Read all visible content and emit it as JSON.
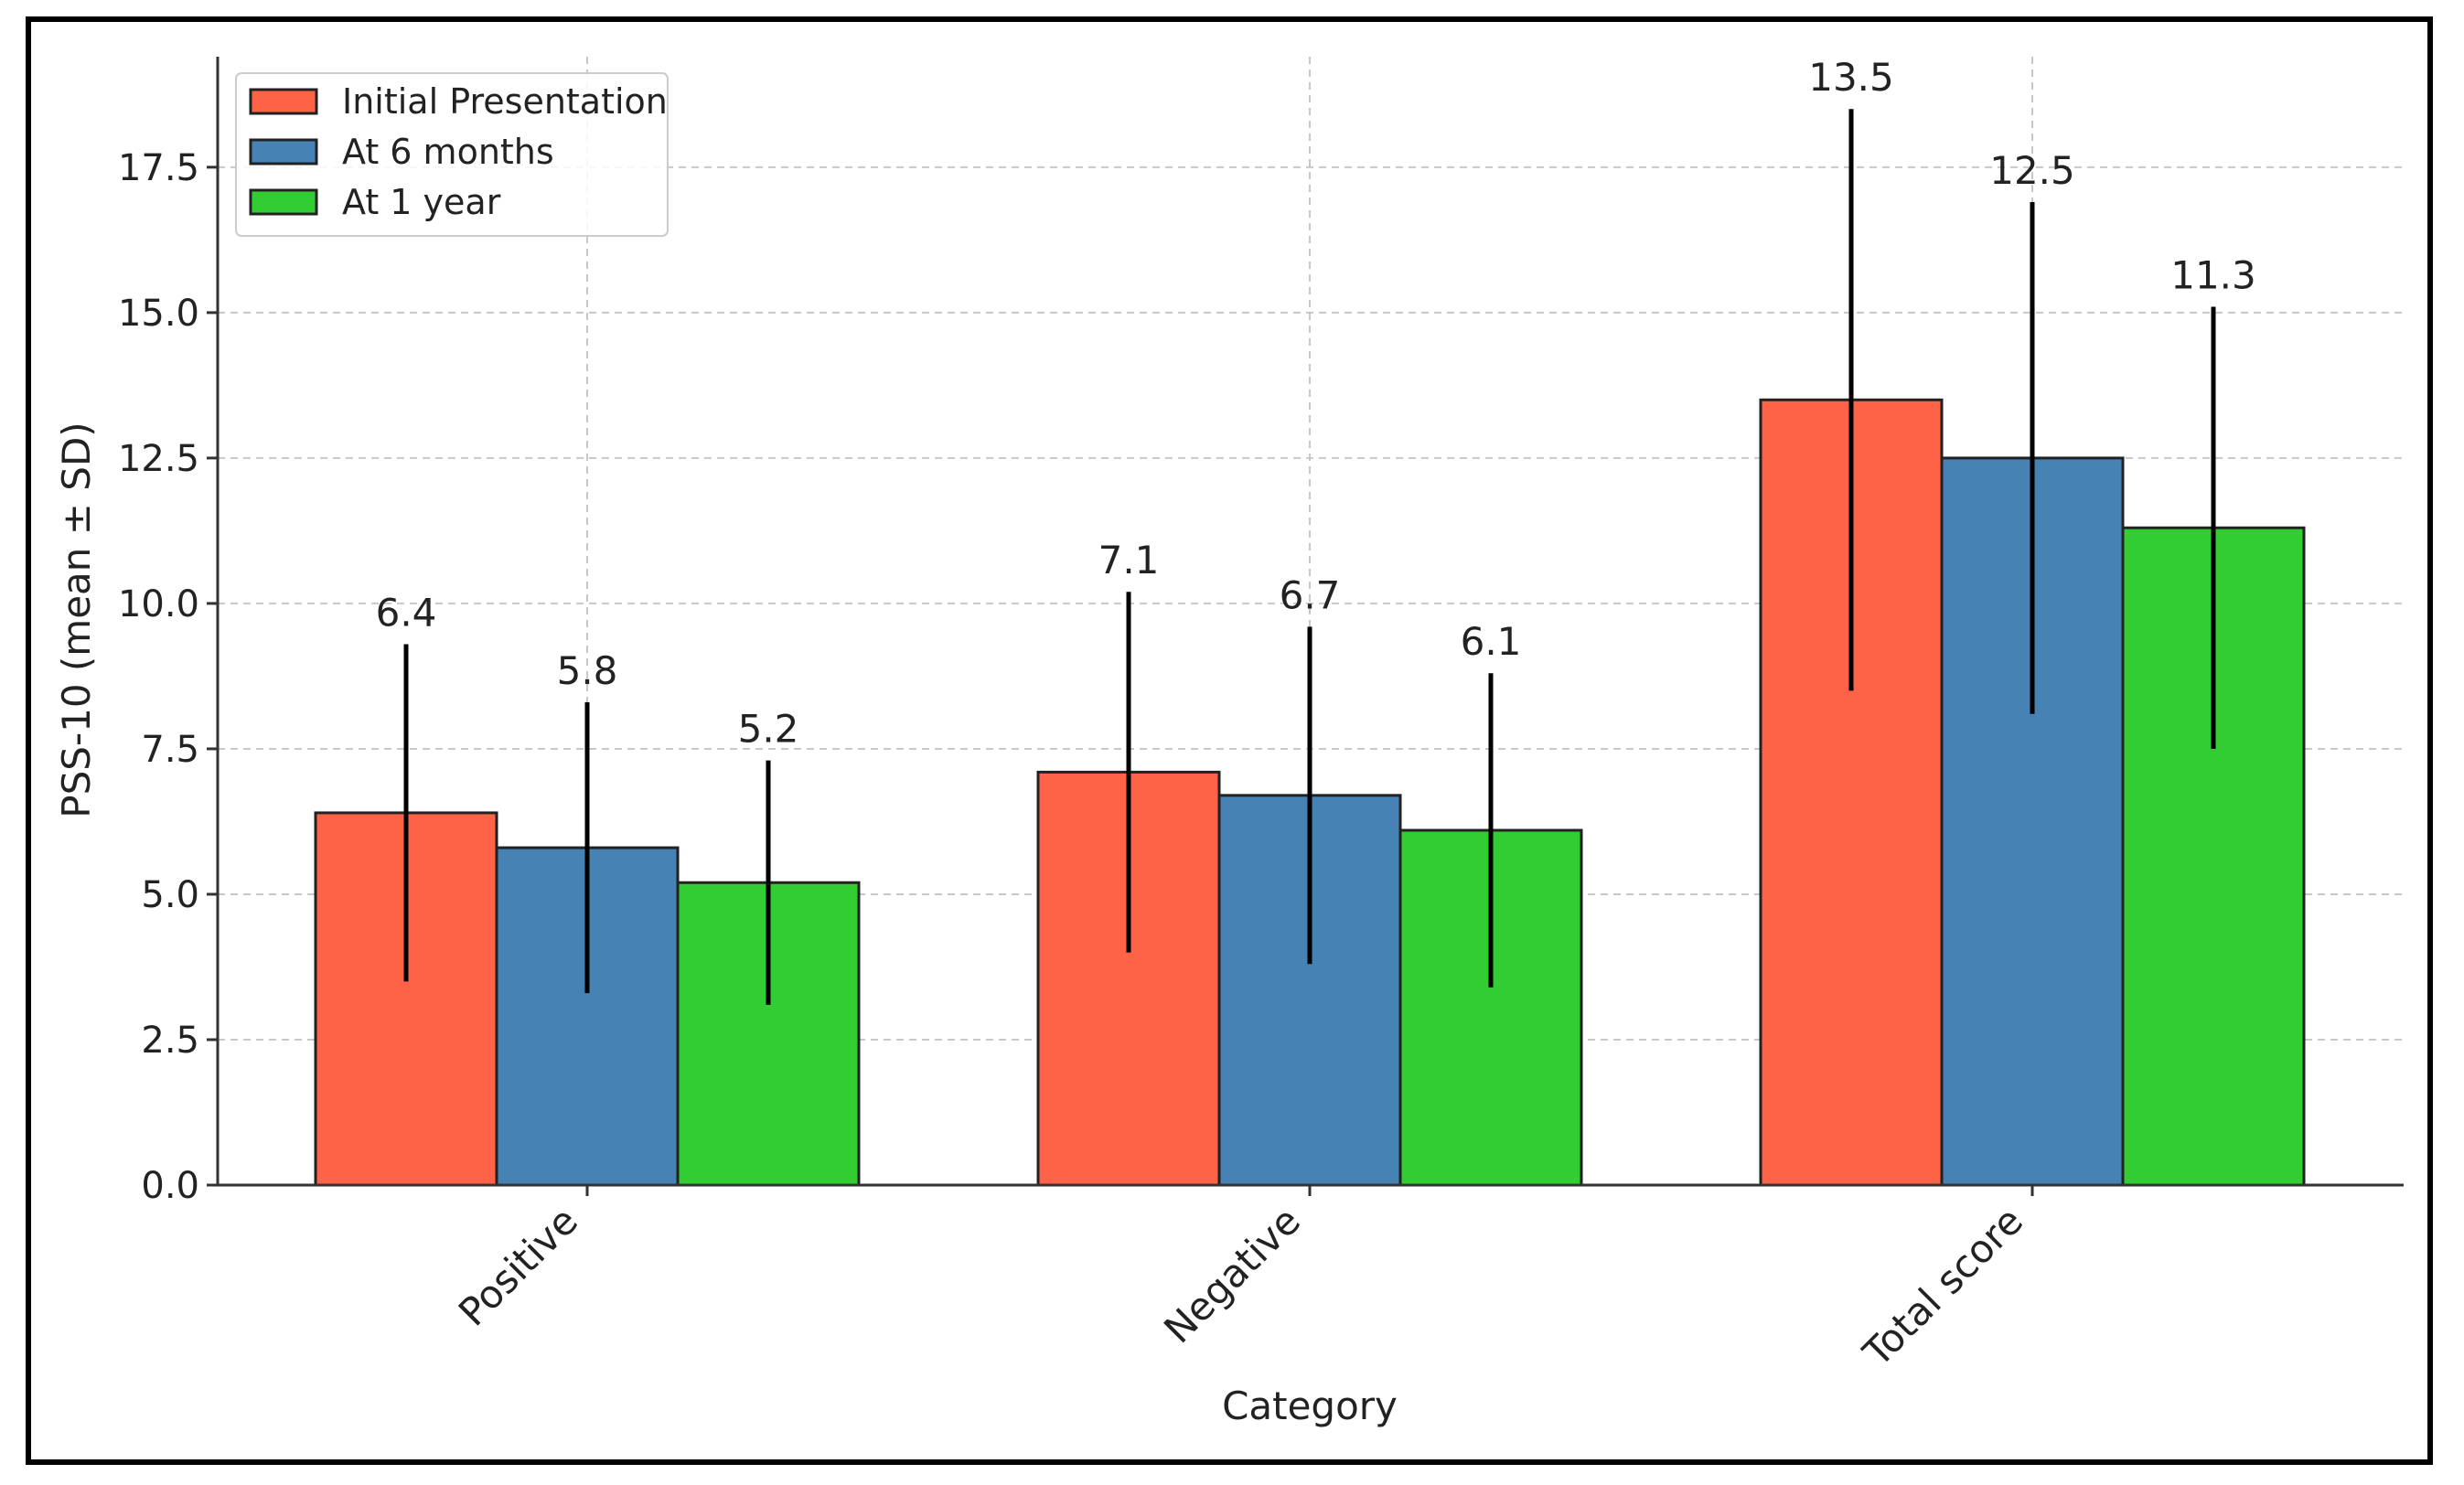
{
  "chart_data": {
    "type": "bar",
    "title": "",
    "xlabel": "Category",
    "ylabel": "PSS-10 (mean ± SD)",
    "categories": [
      "Positive",
      "Negative",
      "Total score"
    ],
    "ylim": [
      0,
      19.4
    ],
    "yticks": [
      0,
      2.5,
      5,
      7.5,
      10,
      12.5,
      15,
      17.5
    ],
    "ytick_labels": [
      "0.0",
      "2.5",
      "5.0",
      "7.5",
      "10.0",
      "12.5",
      "15.0",
      "17.5"
    ],
    "grid": true,
    "legend_position": "top-left",
    "series": [
      {
        "name": "Initial Presentation",
        "color": "#FF6347",
        "values": [
          6.4,
          7.1,
          13.5
        ],
        "sd": [
          2.9,
          3.1,
          5.0
        ],
        "labels": [
          "6.4",
          "7.1",
          "13.5"
        ]
      },
      {
        "name": "At 6 months",
        "color": "#4682B4",
        "values": [
          5.8,
          6.7,
          12.5
        ],
        "sd": [
          2.5,
          2.9,
          4.4
        ],
        "labels": [
          "5.8",
          "6.7",
          "12.5"
        ]
      },
      {
        "name": "At 1 year",
        "color": "#32CD32",
        "values": [
          5.2,
          6.1,
          11.3
        ],
        "sd": [
          2.1,
          2.7,
          3.8
        ],
        "labels": [
          "5.2",
          "6.1",
          "11.3"
        ]
      }
    ]
  }
}
